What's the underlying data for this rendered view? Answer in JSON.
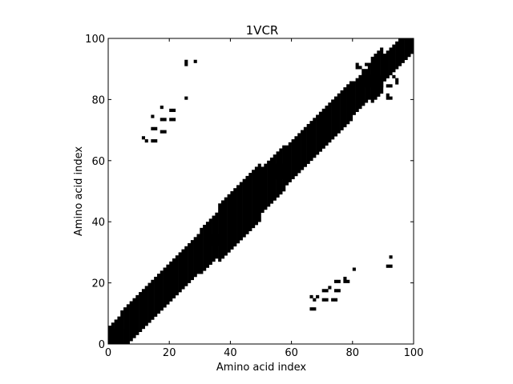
{
  "chart_data": {
    "type": "heatmap",
    "title": "1VCR",
    "xlabel": "Amino acid index",
    "ylabel": "Amino acid index",
    "xlim": [
      0,
      100
    ],
    "ylim": [
      0,
      100
    ],
    "xticks": [
      0,
      20,
      40,
      60,
      80,
      100
    ],
    "yticks": [
      0,
      20,
      40,
      60,
      80,
      100
    ],
    "grid": false,
    "legend": "none",
    "cell_color": "#000000",
    "background_color": "#ffffff",
    "contact_band": [
      {
        "from": 0,
        "to": 4,
        "width": 5
      },
      {
        "from": 4,
        "to": 30,
        "width": 6
      },
      {
        "from": 30,
        "to": 36,
        "width": 7
      },
      {
        "from": 36,
        "to": 50,
        "width": 9
      },
      {
        "from": 50,
        "to": 58,
        "width": 7
      },
      {
        "from": 58,
        "to": 80,
        "width": 6
      },
      {
        "from": 80,
        "to": 86,
        "width": 5
      },
      {
        "from": 86,
        "to": 90,
        "width": 7
      },
      {
        "from": 90,
        "to": 100,
        "width": 4
      }
    ],
    "contact_blocks": [
      {
        "x": 0,
        "y": 0,
        "w": 5,
        "h": 5
      },
      {
        "x": 32,
        "y": 32,
        "w": 4,
        "h": 4
      },
      {
        "x": 54,
        "y": 54,
        "w": 5,
        "h": 5
      },
      {
        "x": 84,
        "y": 84,
        "w": 6,
        "h": 4
      }
    ],
    "contacts": [
      [
        11,
        67
      ],
      [
        12,
        66
      ],
      [
        14,
        66
      ],
      [
        15,
        66
      ],
      [
        14,
        70
      ],
      [
        15,
        70
      ],
      [
        14,
        74
      ],
      [
        17,
        69
      ],
      [
        18,
        69
      ],
      [
        17,
        73
      ],
      [
        18,
        73
      ],
      [
        17,
        77
      ],
      [
        20,
        73
      ],
      [
        21,
        73
      ],
      [
        20,
        76
      ],
      [
        21,
        76
      ],
      [
        25,
        80
      ],
      [
        25,
        91
      ],
      [
        25,
        92
      ],
      [
        28,
        92
      ],
      [
        81,
        90
      ],
      [
        81,
        91
      ],
      [
        82,
        90
      ],
      [
        83,
        89
      ],
      [
        84,
        91
      ],
      [
        85,
        91
      ],
      [
        86,
        91
      ],
      [
        82,
        84
      ],
      [
        83,
        84
      ],
      [
        91,
        84
      ],
      [
        92,
        84
      ],
      [
        91,
        81
      ],
      [
        91,
        80
      ],
      [
        92,
        80
      ],
      [
        93,
        87
      ],
      [
        94,
        86
      ],
      [
        94,
        85
      ],
      [
        66,
        11
      ],
      [
        67,
        11
      ],
      [
        67,
        14
      ],
      [
        68,
        15
      ],
      [
        66,
        15
      ],
      [
        70,
        14
      ],
      [
        71,
        14
      ],
      [
        73,
        14
      ],
      [
        74,
        14
      ],
      [
        70,
        17
      ],
      [
        71,
        17
      ],
      [
        72,
        18
      ],
      [
        74,
        17
      ],
      [
        75,
        17
      ],
      [
        74,
        20
      ],
      [
        75,
        20
      ],
      [
        77,
        20
      ],
      [
        78,
        20
      ],
      [
        77,
        21
      ],
      [
        80,
        24
      ],
      [
        91,
        25
      ],
      [
        92,
        25
      ],
      [
        92,
        28
      ]
    ]
  }
}
